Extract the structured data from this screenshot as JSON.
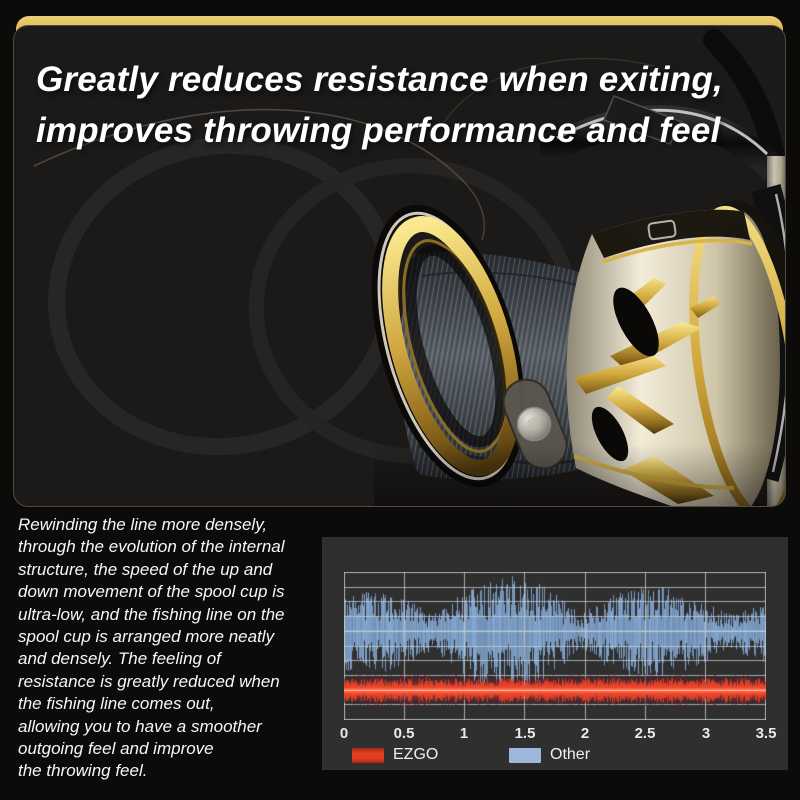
{
  "hero_card": {
    "headline_line1": "Greatly reduces resistance when exiting,",
    "headline_line2": "improves throwing performance and feel",
    "accent_bar_color": "#d9b44a",
    "card_background": "#1c1a19"
  },
  "product_image": {
    "subject": "gold-and-silver spinning fishing reel spool close-up with braided line and coiled line loops"
  },
  "description": {
    "text": "Rewinding the line more densely,\nthrough the evolution of the internal\nstructure, the speed of the up and\ndown movement of the spool cup is\nultra-low, and the fishing line on the\nspool cup is arranged more neatly\nand densely. The feeling of\nresistance is greatly reduced when\nthe fishing line comes out,\nallowing you to have a smoother\noutgoing feel and improve\nthe throwing feel."
  },
  "chart_data": {
    "type": "line",
    "title": "",
    "xlabel": "",
    "ylabel": "",
    "xlim": [
      0,
      3.5
    ],
    "xticks": [
      0,
      0.5,
      1,
      1.5,
      2,
      2.5,
      3,
      3.5
    ],
    "xticklabels": [
      "0",
      "0.5",
      "1",
      "1.5",
      "2",
      "2.5",
      "3",
      "3.5"
    ],
    "grid": true,
    "grid_rows": 10,
    "grid_color": "#c9c9c9",
    "panel_bg": "#2f2f2f",
    "legend_position": "bottom",
    "seed": 9,
    "series": [
      {
        "name": "EZGO",
        "color": "#e23b20",
        "glow_color": "#ff5a3c",
        "dark_spike_color": "#6e1430",
        "center_frac": 0.8,
        "core_amp_frac": 0.05,
        "spike_amp_frac": 0.115,
        "profile": "flat low-amplitude vibration band (smooth line release)"
      },
      {
        "name": "Other",
        "color": "#84aad6",
        "centerline_color": "#a6c2e2",
        "center_frac": 0.4,
        "mean_amp_frac": 0.18,
        "max_amp_frac": 0.38,
        "profile": "high-amplitude noisy vibration band (rough line release)"
      }
    ]
  }
}
